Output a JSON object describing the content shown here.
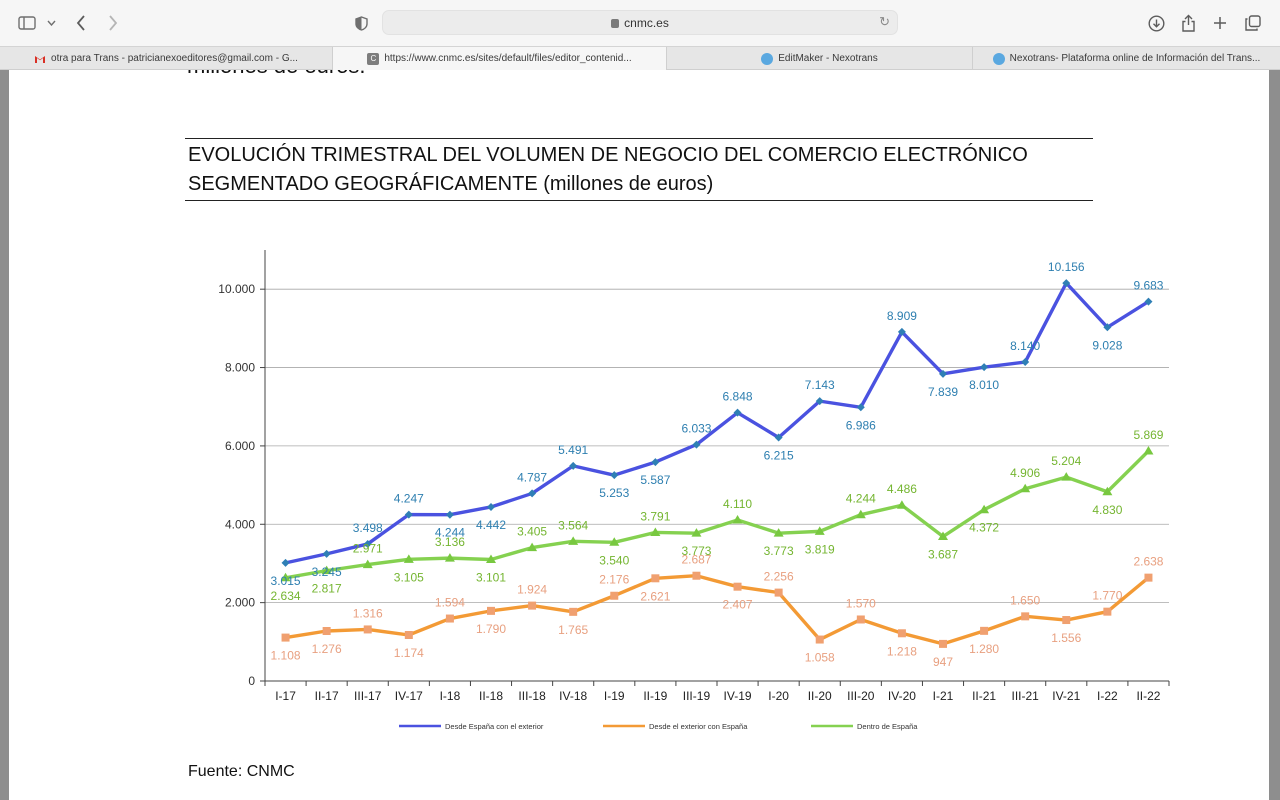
{
  "browser": {
    "url": "cnmc.es",
    "tabs": [
      {
        "label": "otra para Trans - patricianexoeditores@gmail.com - G..."
      },
      {
        "label": "https://www.cnmc.es/sites/default/files/editor_contenid..."
      },
      {
        "label": "EditMaker - Nexotrans"
      },
      {
        "label": "Nexotrans- Plataforma online de Información del Trans..."
      }
    ]
  },
  "document": {
    "previous_text": "millones de euros.",
    "title_line1": "EVOLUCIÓN TRIMESTRAL DEL VOLUMEN DE NEGOCIO DEL COMERCIO ELECTRÓNICO",
    "title_line2_caps": "SEGMENTADO GEOGRÁFICAMENTE",
    "title_line2_rest": " (millones de euros)",
    "source": "Fuente: CNMC"
  },
  "chart_data": {
    "type": "line",
    "categories": [
      "I-17",
      "II-17",
      "III-17",
      "IV-17",
      "I-18",
      "II-18",
      "III-18",
      "IV-18",
      "I-19",
      "II-19",
      "III-19",
      "IV-19",
      "I-20",
      "II-20",
      "III-20",
      "IV-20",
      "I-21",
      "II-21",
      "III-21",
      "IV-21",
      "I-22",
      "II-22"
    ],
    "ylim": [
      0,
      11000
    ],
    "yticks": [
      0,
      2000,
      4000,
      6000,
      8000,
      10000
    ],
    "ytick_labels": [
      "0",
      "2.000",
      "4.000",
      "6.000",
      "8.000",
      "10.000"
    ],
    "grid": "horizontal",
    "legend_position": "bottom",
    "series": [
      {
        "name": "Desde España con el exterior",
        "color": "#4a52e0",
        "label_color": "#2e7fb0",
        "values": [
          3015,
          3245,
          3498,
          4247,
          4244,
          4442,
          4787,
          5491,
          5253,
          5587,
          6033,
          6848,
          6215,
          7143,
          6986,
          8909,
          7839,
          8010,
          8140,
          10156,
          9028,
          9683
        ],
        "labels": [
          "3.015",
          "3.245",
          "3.498",
          "4.247",
          "4.244",
          "4.442",
          "4.787",
          "5.491",
          "5.253",
          "5.587",
          "6.033",
          "6.848",
          "6.215",
          "7.143",
          "6.986",
          "8.909",
          "7.839",
          "8.010",
          "8.140",
          "10.156",
          "9.028",
          "9.683"
        ]
      },
      {
        "name": "Desde el exterior con España",
        "color": "#f39a35",
        "label_color": "#e8a080",
        "values": [
          1108,
          1276,
          1316,
          1174,
          1594,
          1790,
          1924,
          1765,
          2176,
          2621,
          2687,
          2407,
          2256,
          1058,
          1570,
          1218,
          947,
          1280,
          1650,
          1556,
          1770,
          2638
        ],
        "labels": [
          "1.108",
          "1.276",
          "1.316",
          "1.174",
          "1.594",
          "1.790",
          "1.924",
          "1.765",
          "2.176",
          "2.621",
          "2.687",
          "2.407",
          "2.256",
          "1.058",
          "1.570",
          "1.218",
          "947",
          "1.280",
          "1.650",
          "1.556",
          "1.770",
          "2.638"
        ]
      },
      {
        "name": "Dentro de España",
        "color": "#85d150",
        "label_color": "#74b530",
        "values": [
          2634,
          2817,
          2971,
          3105,
          3136,
          3101,
          3405,
          3564,
          3540,
          3791,
          3773,
          4110,
          3773,
          3819,
          4244,
          4486,
          3687,
          4372,
          4906,
          5204,
          4830,
          5869
        ],
        "labels": [
          "2.634",
          "2.817",
          "2.971",
          "3.105",
          "3.136",
          "3.101",
          "3.405",
          "3.564",
          "3.540",
          "3.791",
          "3.773",
          "4.110",
          "3.773",
          "3.819",
          "4.244",
          "4.486",
          "3.687",
          "4.372",
          "4.906",
          "5.204",
          "4.830",
          "5.869"
        ]
      }
    ]
  }
}
